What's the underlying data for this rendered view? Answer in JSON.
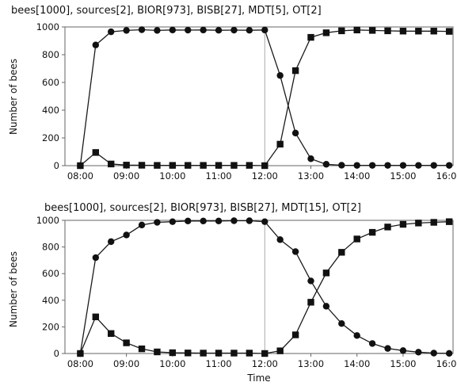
{
  "chart_data": [
    {
      "type": "line",
      "title": "bees[1000], sources[2], BIOR[973], BISB[27], MDT[5], OT[2]",
      "xlabel": "",
      "ylabel": "Number of bees",
      "ylim": [
        0,
        1000
      ],
      "yticks": [
        "0",
        "200",
        "400",
        "600",
        "800",
        "1000"
      ],
      "xlim": [
        "07:40",
        "16:05"
      ],
      "xticks": [
        "08:00",
        "09:00",
        "10:00",
        "11:00",
        "12:00",
        "13:00",
        "14:00",
        "15:00",
        "16:00"
      ],
      "vline": "12:00",
      "grid": false,
      "x": [
        "08:00",
        "08:20",
        "08:40",
        "09:00",
        "09:20",
        "09:40",
        "10:00",
        "10:20",
        "10:40",
        "11:00",
        "11:20",
        "11:40",
        "12:00",
        "12:20",
        "12:40",
        "13:00",
        "13:20",
        "13:40",
        "14:00",
        "14:20",
        "14:40",
        "15:00",
        "15:20",
        "15:40",
        "16:00"
      ],
      "series": [
        {
          "marker": "circle",
          "values": [
            0,
            870,
            965,
            975,
            980,
            975,
            978,
            977,
            978,
            976,
            977,
            976,
            978,
            650,
            235,
            50,
            10,
            3,
            2,
            2,
            2,
            2,
            2,
            2,
            2
          ]
        },
        {
          "marker": "square",
          "values": [
            0,
            95,
            12,
            4,
            3,
            2,
            2,
            2,
            2,
            2,
            2,
            2,
            0,
            155,
            685,
            925,
            958,
            972,
            978,
            975,
            972,
            970,
            970,
            970,
            968
          ]
        }
      ]
    },
    {
      "type": "line",
      "title": "bees[1000], sources[2], BIOR[973], BISB[27], MDT[15], OT[2]",
      "xlabel": "Time",
      "ylabel": "Number of bees",
      "ylim": [
        0,
        1000
      ],
      "yticks": [
        "0",
        "200",
        "400",
        "600",
        "800",
        "1000"
      ],
      "xlim": [
        "07:40",
        "16:05"
      ],
      "xticks": [
        "08:00",
        "09:00",
        "10:00",
        "11:00",
        "12:00",
        "13:00",
        "14:00",
        "15:00",
        "16:00"
      ],
      "vline": "12:00",
      "grid": false,
      "x": [
        "08:00",
        "08:20",
        "08:40",
        "09:00",
        "09:20",
        "09:40",
        "10:00",
        "10:20",
        "10:40",
        "11:00",
        "11:20",
        "11:40",
        "12:00",
        "12:20",
        "12:40",
        "13:00",
        "13:20",
        "13:40",
        "14:00",
        "14:20",
        "14:40",
        "15:00",
        "15:20",
        "15:40",
        "16:00"
      ],
      "series": [
        {
          "marker": "circle",
          "values": [
            0,
            720,
            840,
            890,
            965,
            985,
            990,
            995,
            995,
            995,
            997,
            997,
            990,
            855,
            765,
            545,
            355,
            225,
            135,
            75,
            38,
            22,
            10,
            3,
            1
          ]
        },
        {
          "marker": "square",
          "values": [
            0,
            275,
            150,
            80,
            35,
            12,
            6,
            4,
            3,
            3,
            3,
            3,
            0,
            20,
            140,
            385,
            605,
            760,
            860,
            910,
            950,
            970,
            980,
            985,
            990
          ]
        }
      ]
    }
  ]
}
